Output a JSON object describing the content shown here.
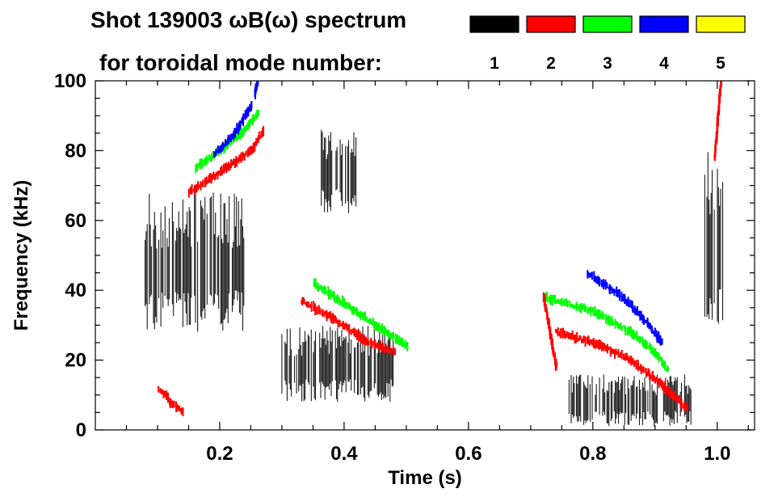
{
  "chart_data": {
    "type": "heatmap",
    "title_line1": "Shot 139003 ωB(ω) spectrum",
    "title_line2": "for toroidal mode number:",
    "xlabel": "Time (s)",
    "ylabel": "Frequency (kHz)",
    "xlim": [
      0.0,
      1.06
    ],
    "ylim": [
      0,
      100
    ],
    "xticks": [
      0.2,
      0.4,
      0.6,
      0.8,
      1.0
    ],
    "xtick_labels": [
      "0.2",
      "0.4",
      "0.6",
      "0.8",
      "1.0"
    ],
    "xminor_step": 0.05,
    "yticks": [
      0,
      20,
      40,
      60,
      80,
      100
    ],
    "ytick_labels": [
      "0",
      "20",
      "40",
      "60",
      "80",
      "100"
    ],
    "yminor_step": 5,
    "legend": [
      {
        "label": "1",
        "color": "#000000"
      },
      {
        "label": "2",
        "color": "#ff0000"
      },
      {
        "label": "3",
        "color": "#00ff00"
      },
      {
        "label": "4",
        "color": "#0000ff"
      },
      {
        "label": "5",
        "color": "#ffff00"
      }
    ],
    "mode_regions": [
      {
        "mode": 1,
        "t_start": 0.08,
        "t_end": 0.24,
        "f_low": 28,
        "f_high": 68,
        "note": "broadband n=1 activity early in shot"
      },
      {
        "mode": 1,
        "t_start": 0.36,
        "t_end": 0.42,
        "f_low": 62,
        "f_high": 86,
        "note": "n=1 burst near 70 kHz"
      },
      {
        "mode": 1,
        "t_start": 0.3,
        "t_end": 0.48,
        "f_low": 8,
        "f_high": 30,
        "note": "n=1 low-frequency mode"
      },
      {
        "mode": 1,
        "t_start": 0.76,
        "t_end": 0.96,
        "f_low": 1,
        "f_high": 16,
        "note": "n=1 late low-frequency mode"
      },
      {
        "mode": 1,
        "t_start": 0.98,
        "t_end": 1.01,
        "f_low": 30,
        "f_high": 80,
        "note": "n=1 burst near t=1.0 s"
      }
    ],
    "mode_chirps": [
      {
        "mode": 2,
        "points": [
          [
            0.15,
            68
          ],
          [
            0.2,
            74
          ],
          [
            0.25,
            80
          ],
          [
            0.27,
            86
          ]
        ]
      },
      {
        "mode": 3,
        "points": [
          [
            0.16,
            75
          ],
          [
            0.2,
            80
          ],
          [
            0.24,
            86
          ],
          [
            0.26,
            91
          ]
        ]
      },
      {
        "mode": 4,
        "points": [
          [
            0.19,
            79
          ],
          [
            0.22,
            84
          ],
          [
            0.25,
            93
          ]
        ]
      },
      {
        "mode": 4,
        "points": [
          [
            0.255,
            96
          ],
          [
            0.26,
            100
          ]
        ]
      },
      {
        "mode": 2,
        "points": [
          [
            0.33,
            37
          ],
          [
            0.38,
            32
          ],
          [
            0.43,
            26
          ],
          [
            0.48,
            22
          ]
        ]
      },
      {
        "mode": 3,
        "points": [
          [
            0.35,
            42
          ],
          [
            0.4,
            36
          ],
          [
            0.45,
            30
          ],
          [
            0.5,
            24
          ]
        ]
      },
      {
        "mode": 2,
        "points": [
          [
            0.74,
            28
          ],
          [
            0.8,
            25
          ],
          [
            0.86,
            20
          ],
          [
            0.91,
            13
          ],
          [
            0.95,
            6
          ]
        ]
      },
      {
        "mode": 3,
        "points": [
          [
            0.72,
            38
          ],
          [
            0.8,
            34
          ],
          [
            0.86,
            28
          ],
          [
            0.9,
            22
          ],
          [
            0.92,
            17
          ]
        ]
      },
      {
        "mode": 4,
        "points": [
          [
            0.79,
            45
          ],
          [
            0.84,
            39
          ],
          [
            0.88,
            32
          ],
          [
            0.91,
            25
          ]
        ]
      },
      {
        "mode": 2,
        "points": [
          [
            0.995,
            78
          ],
          [
            1.0,
            90
          ],
          [
            1.005,
            100
          ]
        ]
      },
      {
        "mode": 2,
        "points": [
          [
            0.72,
            38
          ],
          [
            0.73,
            28
          ],
          [
            0.74,
            18
          ]
        ]
      },
      {
        "mode": 2,
        "points": [
          [
            0.1,
            12
          ],
          [
            0.12,
            8
          ],
          [
            0.14,
            5
          ]
        ]
      }
    ]
  }
}
